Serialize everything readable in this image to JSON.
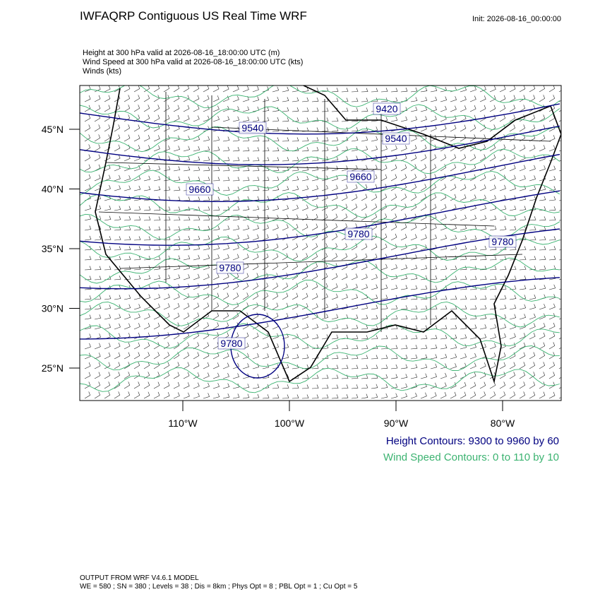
{
  "header": {
    "title": "IWFAQRP Contiguous US Real Time WRF",
    "init": "Init: 2026-08-16_00:00:00",
    "subtitles": [
      "Height at 300 hPa valid at 2026-08-16_18:00:00 UTC   (m)",
      "Wind Speed at 300 hPa valid at 2026-08-16_18:00:00 UTC   (kts)",
      "Winds   (kts)"
    ]
  },
  "map": {
    "lat_ticks": [
      {
        "value": 45,
        "label": "45°N"
      },
      {
        "value": 40,
        "label": "40°N"
      },
      {
        "value": 35,
        "label": "35°N"
      },
      {
        "value": 30,
        "label": "30°N"
      },
      {
        "value": 25,
        "label": "25°N"
      }
    ],
    "lon_ticks": [
      {
        "value": -110,
        "label": "110°W"
      },
      {
        "value": -100,
        "label": "100°W"
      },
      {
        "value": -90,
        "label": "90°W"
      },
      {
        "value": -80,
        "label": "80°W"
      }
    ],
    "contour_labels": [
      "9420",
      "9540",
      "9540",
      "9660",
      "9660",
      "9780",
      "9780",
      "9780",
      "9780"
    ]
  },
  "legend": {
    "height": "Height Contours: 9300 to 9960 by 60",
    "wind": "Wind Speed Contours: 0 to 110 by 10"
  },
  "footer": [
    "OUTPUT FROM WRF V4.6.1 MODEL",
    "WE = 580 ; SN = 380 ; Levels = 38 ; Dis = 8km ; Phys Opt = 8 ; PBL Opt = 1 ; Cu Opt = 5"
  ]
}
